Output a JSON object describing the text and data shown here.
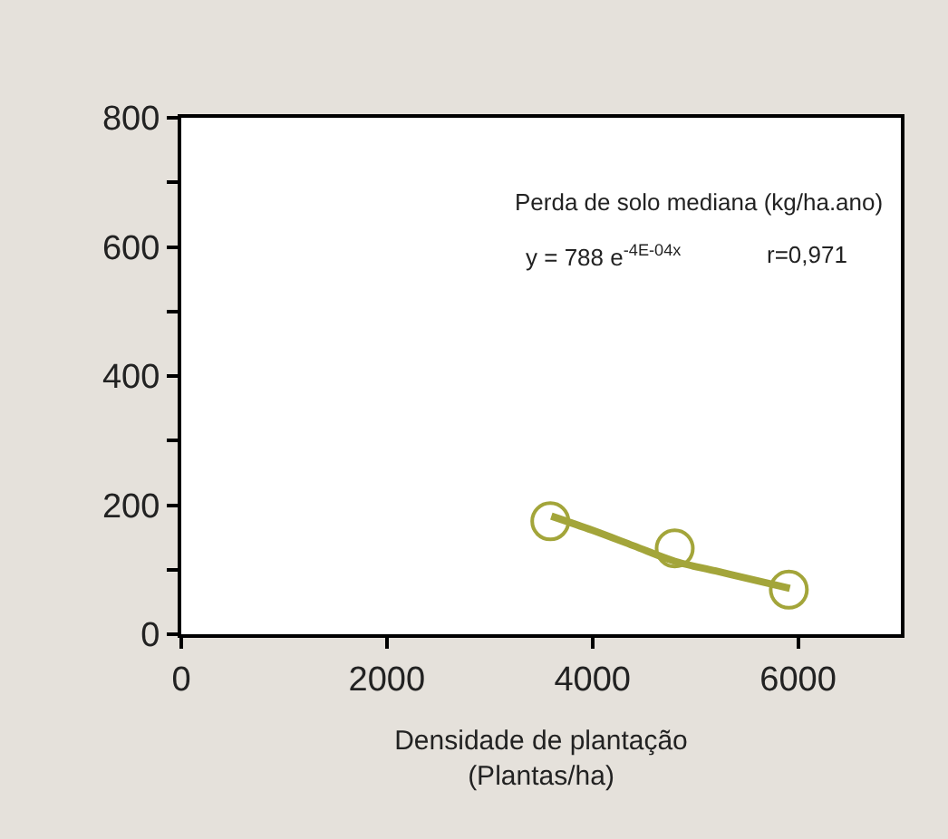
{
  "chart_data": {
    "type": "scatter",
    "xlabel": "Densidade de plantação (Plantas/ha)",
    "x": [
      3590,
      4800,
      5910
    ],
    "series": [
      {
        "color": "#a3a53a",
        "marker": "circle",
        "values": [
          175,
          133,
          69
        ]
      },
      {
        "type": "line",
        "color": "#a3a53a",
        "x": [
          3600,
          4000,
          4400,
          4800,
          5200,
          5600,
          5920
        ],
        "values": [
          183,
          161,
          137,
          113,
          98,
          83,
          71
        ]
      }
    ],
    "xlim": [
      0,
      7000
    ],
    "xticks": [
      0,
      2000,
      4000,
      6000
    ],
    "ylim": [
      0,
      800
    ],
    "yticks": [
      0,
      {
        "value": 100,
        "label": null
      },
      200,
      {
        "value": 300,
        "label": null
      },
      400,
      {
        "value": 500,
        "label": null
      },
      600,
      {
        "value": 700,
        "label": null
      },
      800
    ],
    "annotations": [
      "Perda de solo mediana (kg/ha.ano)",
      "y = 788 e$^{-4E-04x}$",
      "r=0,971"
    ]
  }
}
